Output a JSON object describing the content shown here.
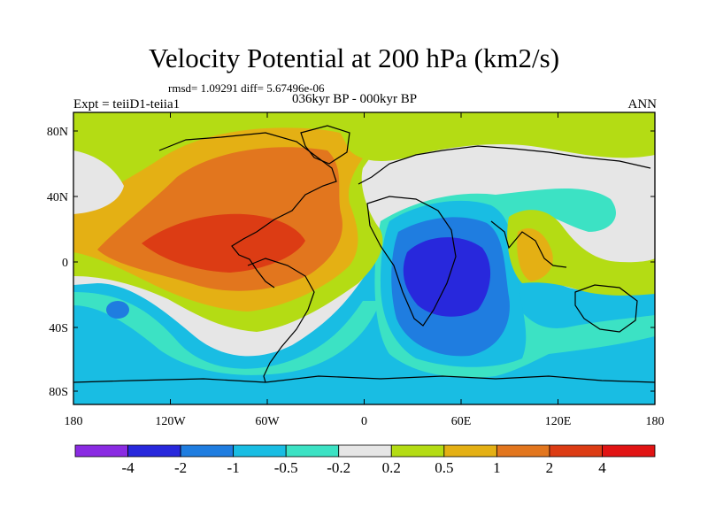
{
  "title": "Velocity Potential at 200 hPa (km2/s)",
  "stats": "rmsd= 1.09291 diff= 5.67496e-06",
  "left_label": "Expt = teiiD1-teiia1",
  "center_label": "036kyr BP - 000kyr BP",
  "right_label": "ANN",
  "lat_ticks": [
    "80N",
    "40N",
    "0",
    "40S",
    "80S"
  ],
  "lon_ticks": [
    "180",
    "120W",
    "60W",
    "0",
    "60E",
    "120E",
    "180"
  ],
  "colorbar": {
    "labels": [
      "-4",
      "-2",
      "-1",
      "-0.5",
      "-0.2",
      "0.2",
      "0.5",
      "1",
      "2",
      "4"
    ],
    "colors": [
      "#8a2be2",
      "#2828dc",
      "#1f7de0",
      "#19bde3",
      "#3ce2c4",
      "#e6e6e6",
      "#b4dc14",
      "#e4b014",
      "#e2761e",
      "#dc3c14",
      "#e11414"
    ]
  },
  "colors": {
    "neg_strong": "#2828dc",
    "neg_mid": "#1f7de0",
    "neg_light": "#19bde3",
    "neg_weak": "#3ce2c4",
    "neutral": "#e6e6e6",
    "pos_weak": "#b4dc14",
    "pos_light": "#e4b014",
    "pos_mid": "#e2761e",
    "pos_strong": "#dc3c14"
  }
}
